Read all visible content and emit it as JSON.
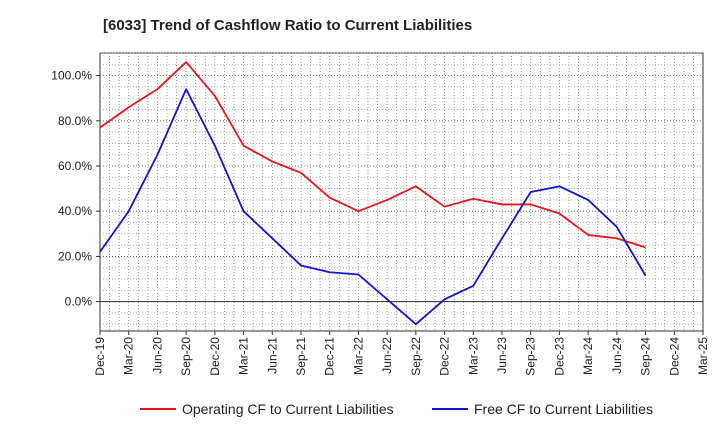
{
  "chart_data": {
    "type": "line",
    "title": "[6033]  Trend of Cashflow Ratio to Current Liabilities",
    "xlabel": "",
    "ylabel": "",
    "categories": [
      "Dec-19",
      "Mar-20",
      "Jun-20",
      "Sep-20",
      "Dec-20",
      "Mar-21",
      "Jun-21",
      "Sep-21",
      "Dec-21",
      "Mar-22",
      "Jun-22",
      "Sep-22",
      "Dec-22",
      "Mar-23",
      "Jun-23",
      "Sep-23",
      "Dec-23",
      "Mar-24",
      "Jun-24",
      "Sep-24",
      "Dec-24",
      "Mar-25"
    ],
    "ylim": [
      -13,
      110
    ],
    "yticks": [
      0,
      20,
      40,
      60,
      80,
      100
    ],
    "ytick_labels": [
      "0.0%",
      "20.0%",
      "40.0%",
      "60.0%",
      "80.0%",
      "100.0%"
    ],
    "grid": true,
    "legend_position": "bottom",
    "series": [
      {
        "name": "Operating CF to Current Liabilities",
        "color": "#e8161b",
        "values": [
          77,
          86,
          94,
          106,
          91,
          69,
          62,
          57,
          46,
          40,
          45,
          51,
          42,
          45.5,
          43,
          43,
          39,
          29.5,
          28,
          24,
          null,
          null
        ]
      },
      {
        "name": "Free CF to Current Liabilities",
        "color": "#1414d4",
        "values": [
          22,
          40,
          65,
          94,
          69,
          40,
          28,
          16,
          13,
          12,
          1,
          -10,
          1,
          7,
          28,
          48.5,
          51,
          45,
          33,
          11.5,
          null,
          null
        ]
      }
    ]
  }
}
